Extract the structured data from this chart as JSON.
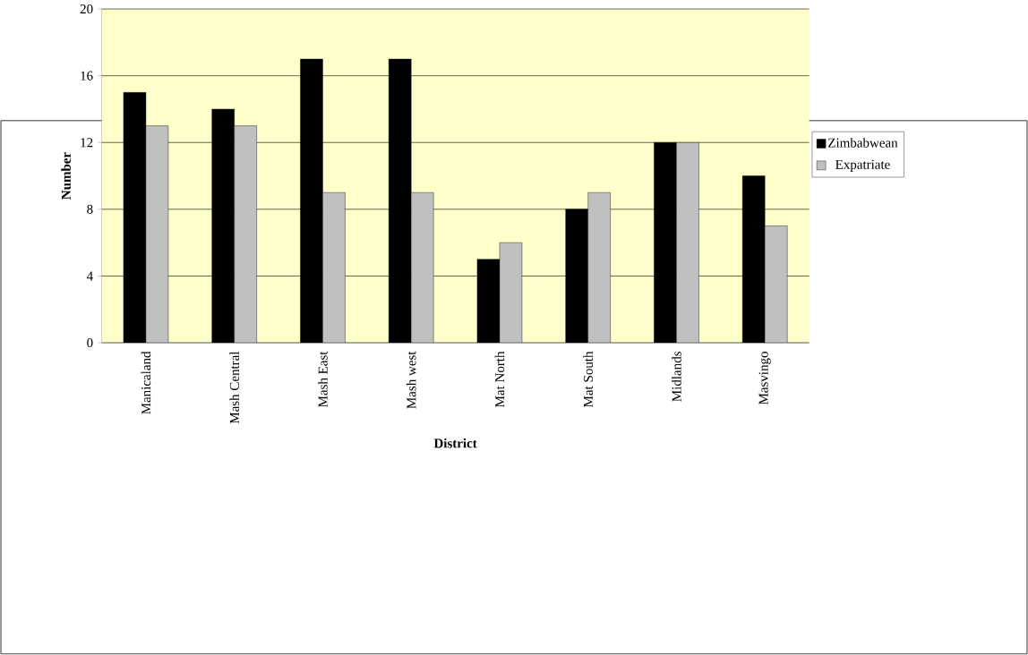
{
  "chart_data": {
    "type": "bar",
    "xlabel": "District",
    "ylabel": "Number",
    "categories": [
      "Manicaland",
      "Mash Central",
      "Mash East",
      "Mash west",
      "Mat North",
      "Mat South",
      "Midlands",
      "Masvingo"
    ],
    "series": [
      {
        "name": "Zimbabwean",
        "color": "#000000",
        "values": [
          15,
          14,
          17,
          17,
          5,
          8,
          12,
          10
        ]
      },
      {
        "name": "Expatriate",
        "color": "#c0c0c0",
        "values": [
          13,
          13,
          9,
          9,
          6,
          9,
          12,
          7
        ]
      }
    ],
    "ylim": [
      0,
      20
    ],
    "yticks": [
      0,
      4,
      8,
      12,
      16,
      20
    ],
    "grid": "y",
    "legend": "right"
  }
}
